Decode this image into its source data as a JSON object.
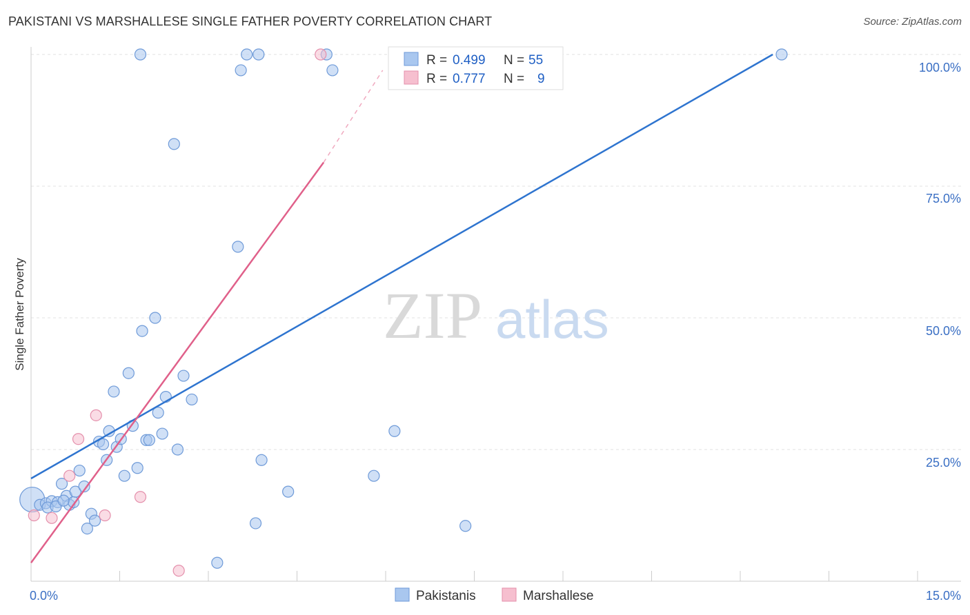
{
  "header": {
    "title": "PAKISTANI VS MARSHALLESE SINGLE FATHER POVERTY CORRELATION CHART",
    "source": "Source: ZipAtlas.com"
  },
  "colors": {
    "pakistanis": "#a9c7ef",
    "pakistanis_line": "#2e74cf",
    "marshallese": "#f6bfcf",
    "marshallese_line": "#e0608a",
    "accent_text": "#3a6fc4"
  },
  "watermark": {
    "zip": "ZIP",
    "atlas": "atlas"
  },
  "chart_data": {
    "type": "scatter",
    "title": "PAKISTANI VS MARSHALLESE SINGLE FATHER POVERTY CORRELATION CHART",
    "xlabel": "",
    "ylabel": "Single Father Poverty",
    "xlim": [
      0,
      15
    ],
    "ylim": [
      0,
      100
    ],
    "x_tick_labels": [
      "0.0%",
      "15.0%"
    ],
    "y_tick_labels": [
      "25.0%",
      "50.0%",
      "75.0%",
      "100.0%"
    ],
    "y_tick_values": [
      25,
      50,
      75,
      100
    ],
    "legend": {
      "pakistanis": {
        "r_label": "R =",
        "r_value": "0.499",
        "n_label": "N =",
        "n_value": "55"
      },
      "marshallese": {
        "r_label": "R =",
        "r_value": "0.777",
        "n_label": "N =",
        "n_value": "9"
      }
    },
    "bottom_legend": [
      "Pakistanis",
      "Marshallese"
    ],
    "series": [
      {
        "name": "Pakistanis",
        "points": [
          [
            0.02,
            15.5
          ],
          [
            0.15,
            14.5
          ],
          [
            0.25,
            14.8
          ],
          [
            0.35,
            15.2
          ],
          [
            0.45,
            15.0
          ],
          [
            0.52,
            18.5
          ],
          [
            0.6,
            16.2
          ],
          [
            0.65,
            14.5
          ],
          [
            0.72,
            15.0
          ],
          [
            0.75,
            17.0
          ],
          [
            0.82,
            21.0
          ],
          [
            0.9,
            18.0
          ],
          [
            0.95,
            10.0
          ],
          [
            1.02,
            12.8
          ],
          [
            1.08,
            11.5
          ],
          [
            1.15,
            26.5
          ],
          [
            1.22,
            26.0
          ],
          [
            1.28,
            23.0
          ],
          [
            1.32,
            28.5
          ],
          [
            1.4,
            36.0
          ],
          [
            1.45,
            25.5
          ],
          [
            1.52,
            27.0
          ],
          [
            1.58,
            20.0
          ],
          [
            1.65,
            39.5
          ],
          [
            1.72,
            29.5
          ],
          [
            1.8,
            21.5
          ],
          [
            1.88,
            47.5
          ],
          [
            1.95,
            26.8
          ],
          [
            2.0,
            26.8
          ],
          [
            2.1,
            50.0
          ],
          [
            2.15,
            32.0
          ],
          [
            2.22,
            28.0
          ],
          [
            2.28,
            35.0
          ],
          [
            2.42,
            83.0
          ],
          [
            2.48,
            25.0
          ],
          [
            2.58,
            39.0
          ],
          [
            2.72,
            34.5
          ],
          [
            1.85,
            100.0
          ],
          [
            3.15,
            3.5
          ],
          [
            3.5,
            63.5
          ],
          [
            3.55,
            97.0
          ],
          [
            3.65,
            100.0
          ],
          [
            3.8,
            11.0
          ],
          [
            3.85,
            100.0
          ],
          [
            3.9,
            23.0
          ],
          [
            4.35,
            17.0
          ],
          [
            5.0,
            100.0
          ],
          [
            5.1,
            97.0
          ],
          [
            5.8,
            20.0
          ],
          [
            6.15,
            28.5
          ],
          [
            7.35,
            10.5
          ],
          [
            12.7,
            100.0
          ],
          [
            0.28,
            14.0
          ],
          [
            0.42,
            14.2
          ],
          [
            0.55,
            15.3
          ]
        ],
        "trend": {
          "x": [
            0,
            12.55
          ],
          "y": [
            19.5,
            100
          ]
        }
      },
      {
        "name": "Marshallese",
        "points": [
          [
            0.05,
            12.5
          ],
          [
            0.35,
            12.0
          ],
          [
            0.65,
            20.0
          ],
          [
            0.8,
            27.0
          ],
          [
            1.1,
            31.5
          ],
          [
            1.25,
            12.5
          ],
          [
            1.85,
            16.0
          ],
          [
            2.5,
            2.0
          ],
          [
            4.9,
            100.0
          ]
        ],
        "trend": {
          "x": [
            0,
            4.95
          ],
          "y": [
            3.5,
            79.5
          ],
          "dash_to": [
            5.95,
            97
          ]
        }
      }
    ]
  }
}
